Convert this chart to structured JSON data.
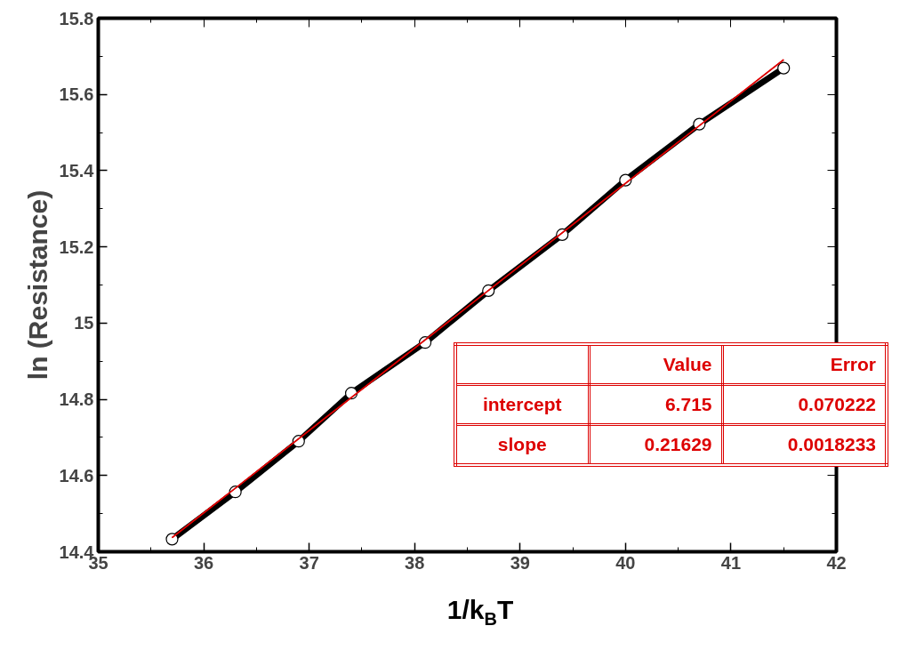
{
  "chart_data": {
    "type": "line",
    "xlabel": "1/k$_{B}$T",
    "ylabel": "ln (Resistance)",
    "xlim": [
      35,
      42
    ],
    "xticks": [
      35,
      36,
      37,
      38,
      39,
      40,
      41,
      42
    ],
    "ylim": [
      14.4,
      15.8
    ],
    "yticks": [
      {
        "value": 14.4,
        "label": "14.4"
      },
      {
        "value": 14.6,
        "label": "14.6"
      },
      {
        "value": 14.8,
        "label": "14.8"
      },
      {
        "value": 15.0,
        "label": "15"
      },
      {
        "value": 15.2,
        "label": "15.2"
      },
      {
        "value": 15.4,
        "label": "15.4"
      },
      {
        "value": 15.6,
        "label": "15.6"
      },
      {
        "value": 15.8,
        "label": "15.8"
      }
    ],
    "grid": false,
    "series": [
      {
        "color": "#000000",
        "marker": "circle",
        "x": [
          35.7,
          36.3,
          36.9,
          37.4,
          38.1,
          38.7,
          39.4,
          40.0,
          40.7,
          41.5
        ],
        "values": [
          14.433,
          14.557,
          14.69,
          14.816,
          14.949,
          15.085,
          15.232,
          15.375,
          15.522,
          15.669
        ]
      },
      {
        "color": "#dd0000",
        "marker": "none",
        "x": [
          35.7,
          41.5
        ],
        "values": [
          14.437,
          15.691
        ]
      }
    ],
    "annotations": [
      "Value",
      "Error",
      "intercept",
      "6.715",
      "0.070222",
      "slope",
      "0.21629",
      "0.0018233"
    ]
  }
}
